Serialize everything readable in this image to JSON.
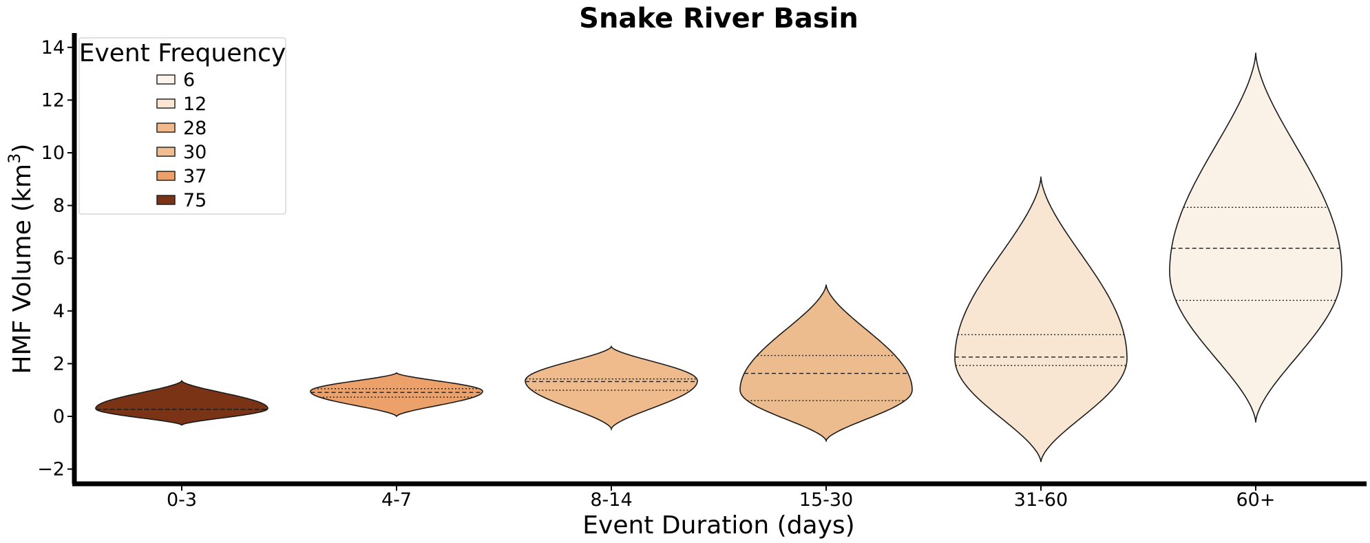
{
  "chart_data": {
    "type": "violin",
    "title": "Snake River Basin",
    "xlabel": "Event Duration (days)",
    "ylabel": "HMF Volume (km",
    "ylabel_sup": "3",
    "ylabel_close": ")",
    "ylim": [
      -2.5,
      14.6
    ],
    "yticks": [
      -2,
      0,
      2,
      4,
      6,
      8,
      10,
      12,
      14
    ],
    "ytick_labels": [
      "−2",
      "0",
      "2",
      "4",
      "6",
      "8",
      "10",
      "12",
      "14"
    ],
    "categories": [
      "0-3",
      "4-7",
      "8-14",
      "15-30",
      "31-60",
      "60+"
    ],
    "grid": false,
    "legend": {
      "title": "Event Frequency",
      "placement": "top-left",
      "entries": [
        {
          "label": "6",
          "color": "#fdf3ea"
        },
        {
          "label": "12",
          "color": "#fbe6d2"
        },
        {
          "label": "28",
          "color": "#f2ba8c"
        },
        {
          "label": "30",
          "color": "#efbd8f"
        },
        {
          "label": "37",
          "color": "#eca06a"
        },
        {
          "label": "75",
          "color": "#7a3415"
        }
      ]
    },
    "violins": [
      {
        "category": "0-3",
        "frequency": 75,
        "color": "#7a3415",
        "min": -0.33,
        "max": 1.35,
        "q1": 0.27,
        "median": 0.27,
        "q3": 0.27,
        "mode": 0.3,
        "halfwidth_days": 0.41
      },
      {
        "category": "4-7",
        "frequency": 37,
        "color": "#eca06a",
        "min": 0.0,
        "max": 1.65,
        "q1": 0.73,
        "median": 0.91,
        "q3": 1.05,
        "mode": 0.95,
        "halfwidth_days": 0.41
      },
      {
        "category": "8-14",
        "frequency": 28,
        "color": "#efbb8c",
        "min": -0.48,
        "max": 2.65,
        "q1": 0.99,
        "median": 1.32,
        "q3": 1.42,
        "mode": 1.35,
        "halfwidth_days": 0.41
      },
      {
        "category": "15-30",
        "frequency": 30,
        "color": "#edbc8e",
        "min": -0.93,
        "max": 5.0,
        "q1": 0.6,
        "median": 1.63,
        "q3": 2.31,
        "mode": 1.0,
        "halfwidth_days": 0.41
      },
      {
        "category": "31-60",
        "frequency": 12,
        "color": "#f8e6d3",
        "min": -1.73,
        "max": 9.1,
        "q1": 1.93,
        "median": 2.25,
        "q3": 3.1,
        "mode": 2.2,
        "halfwidth_days": 0.41
      },
      {
        "category": "60+",
        "frequency": 6,
        "color": "#faf1e7",
        "min": -0.23,
        "max": 13.8,
        "q1": 4.4,
        "median": 6.38,
        "q3": 7.93,
        "mode": 5.5,
        "halfwidth_days": 0.41
      }
    ]
  }
}
